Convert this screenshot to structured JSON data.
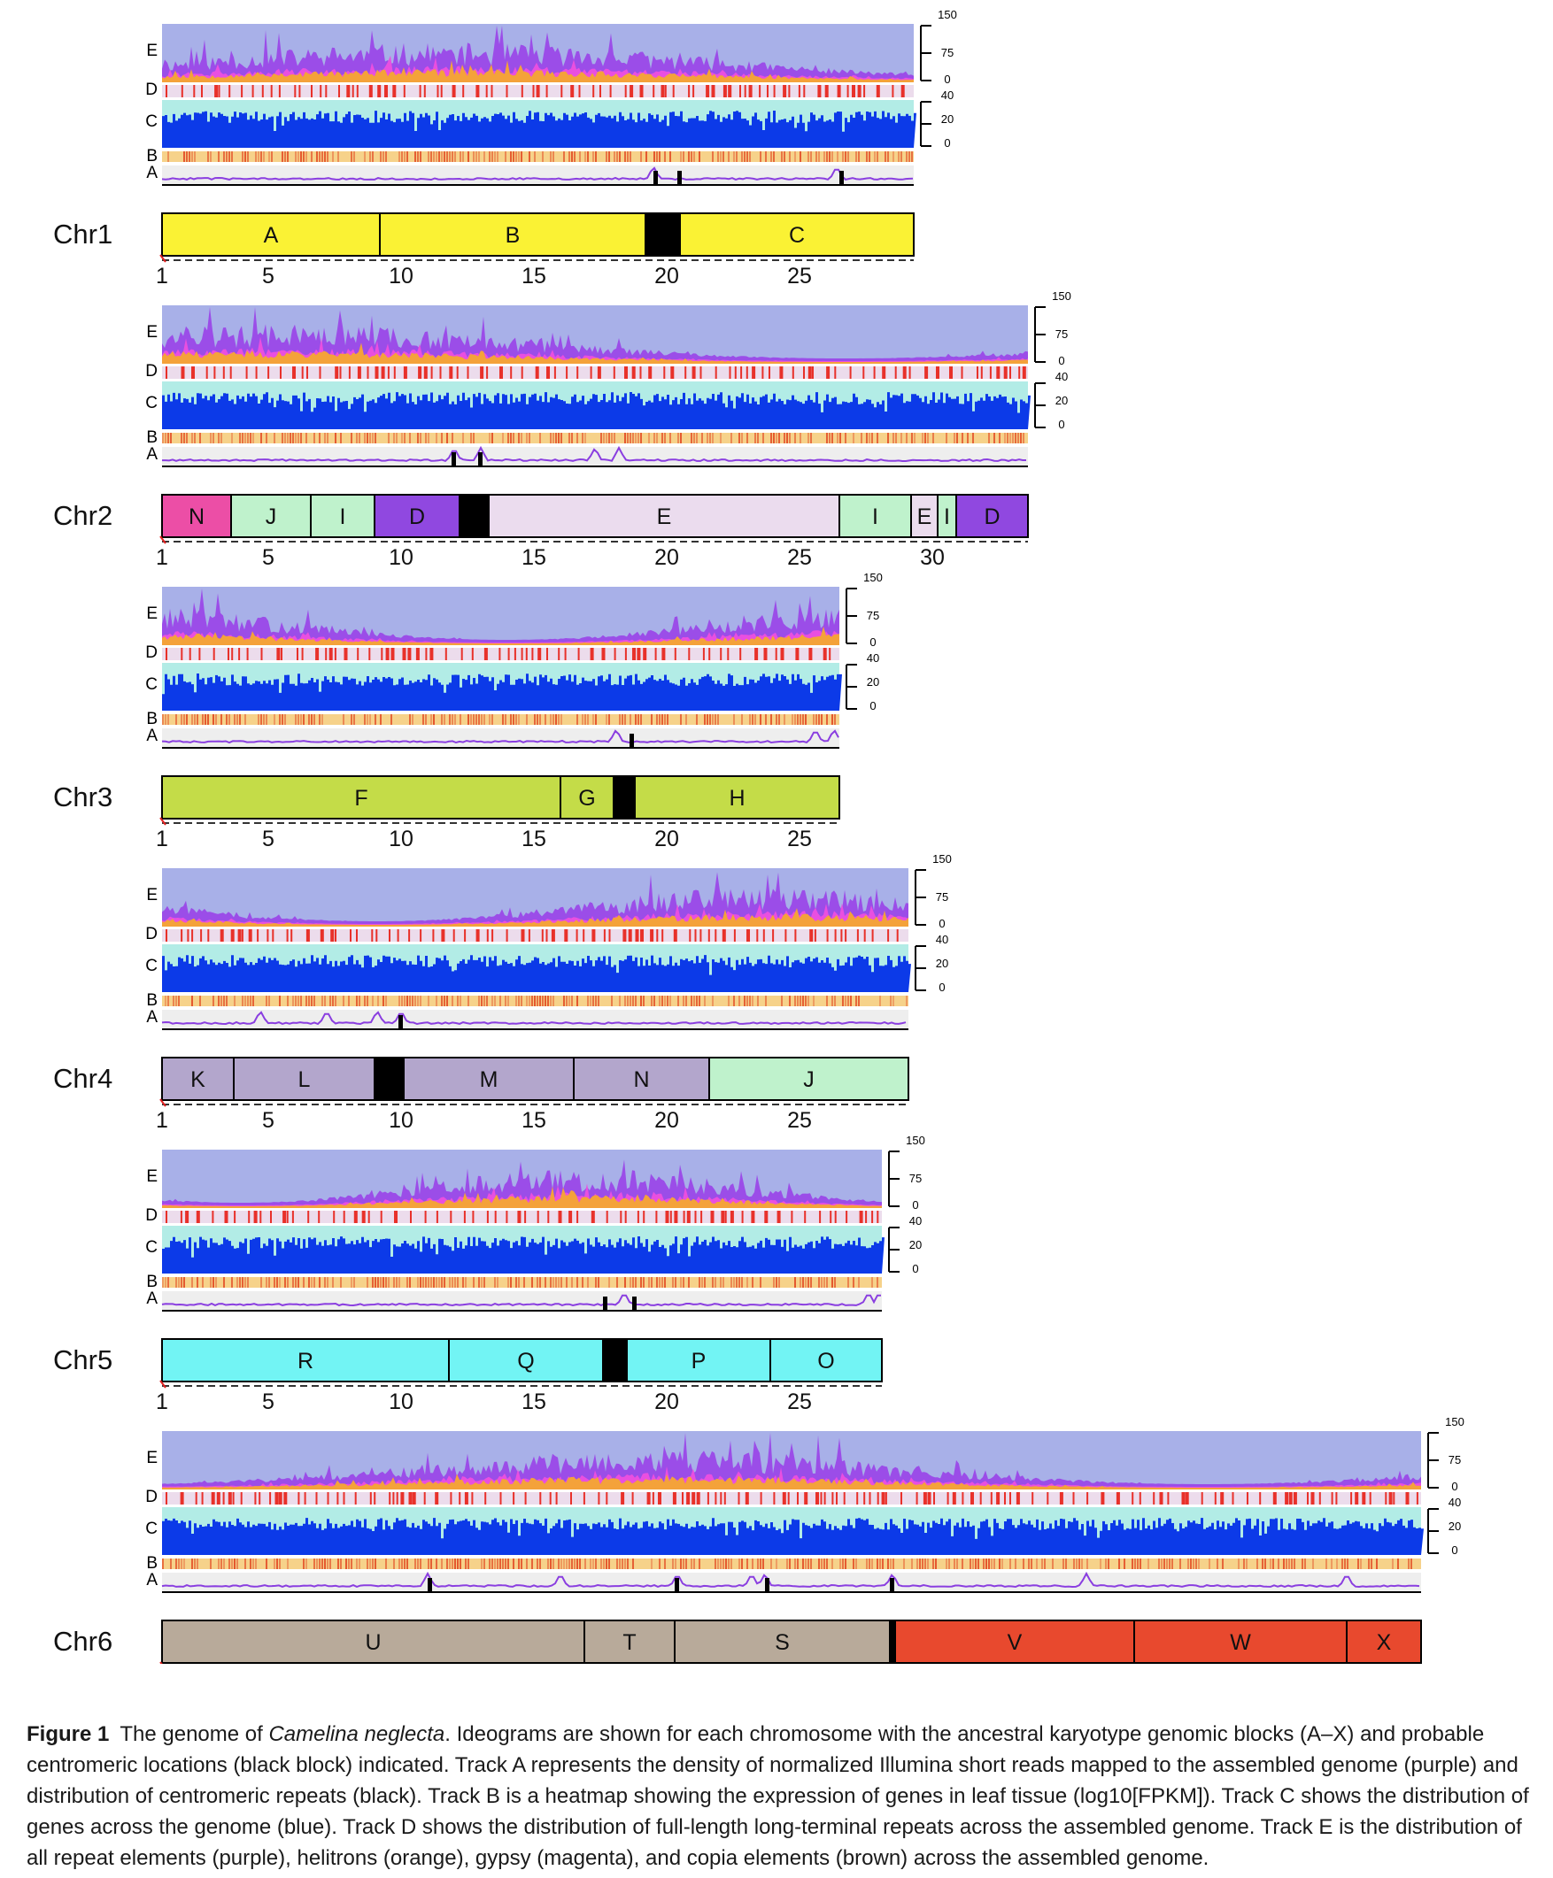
{
  "figure": {
    "caption_label": "Figure 1",
    "caption_pre": "The genome of ",
    "caption_species": "Camelina neglecta",
    "caption_post": ". Ideograms are shown for each chromosome with the ancestral karyotype genomic blocks (A–X) and probable centromeric locations (black block) indicated. Track A represents the density of normalized Illumina short reads mapped to the assembled genome (purple) and distribution of centromeric repeats (black). Track B is a heatmap showing the expression of genes in leaf tissue (log10[FPKM]). Track C shows the distribution of genes across the genome (blue). Track D shows the distribution of full-length long-terminal repeats across the assembled genome. Track E is the distribution of all repeat elements (purple), helitrons (orange), gypsy (magenta), and copia elements (brown) across the assembled genome."
  },
  "colors": {
    "trackE_bg": "#a8b0e8",
    "trackE_all": "#9b4de8",
    "trackE_gypsy": "#e94fe0",
    "trackE_helitron": "#f4a23a",
    "trackD_bg": "#ecdcec",
    "trackD_bar": "#e8312a",
    "trackC_bg": "#b2ece6",
    "trackC_bar": "#0c3ae8",
    "trackB_low": "#f6d28a",
    "trackB_high": "#e4572e",
    "trackA_bg": "#eeeeee",
    "trackA_line": "#8a3ee0",
    "centromere": "#000000"
  },
  "tracks": {
    "labels": [
      "E",
      "D",
      "C",
      "B",
      "A"
    ],
    "scaleE": [
      "150",
      "75",
      "0"
    ],
    "scaleC": [
      "40",
      "20",
      "0"
    ]
  },
  "chart_data": {
    "type": "genome ideogram",
    "x_unit": "Mb",
    "chromosomes": [
      {
        "name": "Chr1",
        "length": 29.3,
        "ticks": [
          "1",
          "5",
          "10",
          "15",
          "20",
          "25"
        ],
        "blocks": [
          {
            "label": "A",
            "start": 1,
            "end": 9.2,
            "color": "#faf234"
          },
          {
            "label": "B",
            "start": 9.2,
            "end": 19.2,
            "color": "#faf234"
          },
          {
            "label": "",
            "start": 19.2,
            "end": 20.5,
            "color": "#000000"
          },
          {
            "label": "C",
            "start": 20.5,
            "end": 29.3,
            "color": "#faf234"
          }
        ],
        "centromere": [
          19.2,
          20.5
        ],
        "cent_repeats": [
          19.6,
          20.5,
          26.6
        ],
        "read_peaks": [
          19.5,
          26.4
        ]
      },
      {
        "name": "Chr2",
        "length": 33.6,
        "ticks": [
          "1",
          "5",
          "10",
          "15",
          "20",
          "25",
          "30"
        ],
        "blocks": [
          {
            "label": "N",
            "start": 1,
            "end": 3.6,
            "color": "#ec4ea6"
          },
          {
            "label": "J",
            "start": 3.6,
            "end": 6.6,
            "color": "#bff2cc"
          },
          {
            "label": "I",
            "start": 6.6,
            "end": 9.0,
            "color": "#bff2cc"
          },
          {
            "label": "D",
            "start": 9.0,
            "end": 12.2,
            "color": "#9048e0"
          },
          {
            "label": "",
            "start": 12.2,
            "end": 13.3,
            "color": "#000000"
          },
          {
            "label": "E",
            "start": 13.3,
            "end": 26.5,
            "color": "#ebdcee"
          },
          {
            "label": "I",
            "start": 26.5,
            "end": 29.2,
            "color": "#bff2cc"
          },
          {
            "label": "E",
            "start": 29.2,
            "end": 30.2,
            "color": "#ebdcee"
          },
          {
            "label": "I",
            "start": 30.2,
            "end": 30.9,
            "color": "#bff2cc"
          },
          {
            "label": "D",
            "start": 30.9,
            "end": 33.6,
            "color": "#9048e0"
          }
        ],
        "centromere": [
          12.2,
          13.3
        ],
        "cent_repeats": [
          12.0,
          13.0
        ],
        "read_peaks": [
          12.0,
          13.0,
          17.3,
          18.2
        ]
      },
      {
        "name": "Chr3",
        "length": 26.5,
        "ticks": [
          "1",
          "5",
          "10",
          "15",
          "20",
          "25"
        ],
        "blocks": [
          {
            "label": "F",
            "start": 1,
            "end": 16.0,
            "color": "#c4dc48"
          },
          {
            "label": "G",
            "start": 16.0,
            "end": 18.0,
            "color": "#c4dc48"
          },
          {
            "label": "",
            "start": 18.0,
            "end": 18.8,
            "color": "#000000"
          },
          {
            "label": "H",
            "start": 18.8,
            "end": 26.5,
            "color": "#c4dc48"
          }
        ],
        "centromere": [
          18.0,
          18.8
        ],
        "cent_repeats": [
          18.7
        ],
        "read_peaks": [
          18.1,
          25.6,
          26.3
        ]
      },
      {
        "name": "Chr4",
        "length": 29.1,
        "ticks": [
          "1",
          "5",
          "10",
          "15",
          "20",
          "25"
        ],
        "blocks": [
          {
            "label": "K",
            "start": 1,
            "end": 3.7,
            "color": "#b3a6cc"
          },
          {
            "label": "L",
            "start": 3.7,
            "end": 9.0,
            "color": "#b3a6cc"
          },
          {
            "label": "",
            "start": 9.0,
            "end": 10.1,
            "color": "#000000"
          },
          {
            "label": "M",
            "start": 10.1,
            "end": 16.5,
            "color": "#b3a6cc"
          },
          {
            "label": "N",
            "start": 16.5,
            "end": 21.6,
            "color": "#b3a6cc"
          },
          {
            "label": "J",
            "start": 21.6,
            "end": 29.1,
            "color": "#bff2cc"
          }
        ],
        "centromere": [
          9.0,
          10.1
        ],
        "cent_repeats": [
          10.0
        ],
        "read_peaks": [
          4.7,
          7.2,
          9.1,
          10.0
        ]
      },
      {
        "name": "Chr5",
        "length": 28.1,
        "ticks": [
          "1",
          "5",
          "10",
          "15",
          "20",
          "25"
        ],
        "blocks": [
          {
            "label": "R",
            "start": 1,
            "end": 11.8,
            "color": "#72f4f4"
          },
          {
            "label": "Q",
            "start": 11.8,
            "end": 17.6,
            "color": "#72f4f4"
          },
          {
            "label": "",
            "start": 17.6,
            "end": 18.5,
            "color": "#000000"
          },
          {
            "label": "P",
            "start": 18.5,
            "end": 23.9,
            "color": "#72f4f4"
          },
          {
            "label": "O",
            "start": 23.9,
            "end": 28.1,
            "color": "#72f4f4"
          }
        ],
        "centromere": [
          17.6,
          18.5
        ],
        "cent_repeats": [
          17.7,
          18.8
        ],
        "read_peaks": [
          18.4,
          27.6,
          28.0
        ]
      },
      {
        "name": "Chr6",
        "length": 48.4,
        "ticks": [
          "1",
          "5",
          "10",
          "15",
          "20",
          "25",
          "30",
          "35",
          "40",
          "45"
        ],
        "blocks": [
          {
            "label": "U",
            "start": 1,
            "end": 16.9,
            "color": "#b8aa9a"
          },
          {
            "label": "T",
            "start": 16.9,
            "end": 20.3,
            "color": "#b8aa9a"
          },
          {
            "label": "S",
            "start": 20.3,
            "end": 28.4,
            "color": "#b8aa9a"
          },
          {
            "label": "",
            "start": 28.4,
            "end": 28.6,
            "color": "#000000"
          },
          {
            "label": "V",
            "start": 28.6,
            "end": 37.6,
            "color": "#e8492e"
          },
          {
            "label": "W",
            "start": 37.6,
            "end": 45.6,
            "color": "#e8492e"
          },
          {
            "label": "X",
            "start": 45.6,
            "end": 48.4,
            "color": "#e8492e"
          }
        ],
        "centromere": [
          28.4,
          28.6
        ],
        "cent_repeats": [
          11.1,
          20.4,
          23.8,
          28.5
        ],
        "read_peaks": [
          11.0,
          16.0,
          20.4,
          23.2,
          23.7,
          28.5,
          35.8,
          45.6
        ]
      }
    ]
  }
}
